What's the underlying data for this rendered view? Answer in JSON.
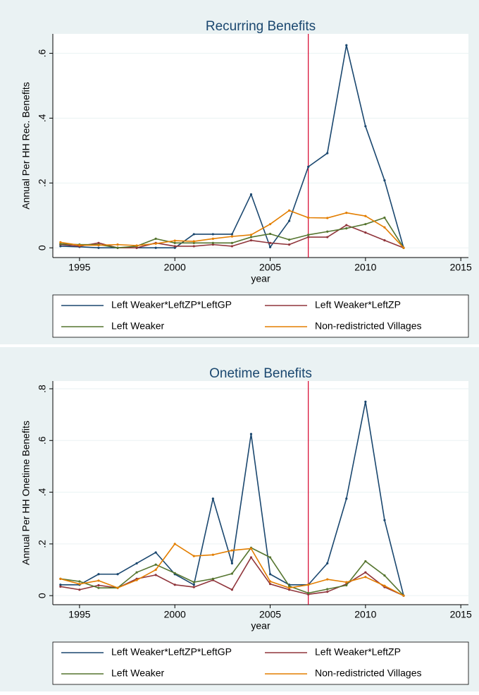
{
  "chart_data": [
    {
      "type": "line",
      "title": "Recurring Benefits",
      "x_label": "year",
      "y_label": "Annual Per HH Rec. Benefits",
      "x": [
        1994,
        1995,
        1996,
        1997,
        1998,
        1999,
        2000,
        2001,
        2002,
        2003,
        2004,
        2005,
        2006,
        2007,
        2008,
        2009,
        2010,
        2011,
        2012
      ],
      "series": [
        {
          "name": "Left Weaker*LeftZP*LeftGP",
          "color": "#1a476f",
          "values": [
            0.005,
            0.003,
            0,
            0,
            0,
            0,
            0,
            0.042,
            0.042,
            0.042,
            0.165,
            0.002,
            0.083,
            0.25,
            0.292,
            0.625,
            0.375,
            0.208,
            0
          ]
        },
        {
          "name": "Left Weaker*LeftZP",
          "color": "#90353b",
          "values": [
            0.01,
            0.005,
            0.015,
            0,
            0,
            0.015,
            0.005,
            0.005,
            0.01,
            0.005,
            0.023,
            0.015,
            0.01,
            0.033,
            0.033,
            0.07,
            0.047,
            0.023,
            0
          ]
        },
        {
          "name": "Left Weaker",
          "color": "#55752f",
          "values": [
            0.012,
            0.01,
            0.01,
            0,
            0.005,
            0.028,
            0.015,
            0.015,
            0.015,
            0.015,
            0.033,
            0.043,
            0.025,
            0.04,
            0.05,
            0.06,
            0.073,
            0.093,
            0
          ]
        },
        {
          "name": "Non-redistricted Villages",
          "color": "#e37e00",
          "values": [
            0.017,
            0.008,
            0.008,
            0.01,
            0.007,
            0.013,
            0.022,
            0.02,
            0.028,
            0.035,
            0.04,
            0.073,
            0.115,
            0.093,
            0.092,
            0.108,
            0.098,
            0.063,
            0
          ]
        }
      ],
      "xlim": [
        1993.6,
        2015.4
      ],
      "xticks": [
        1995,
        2000,
        2005,
        2010,
        2015
      ],
      "ylim": [
        -0.03,
        0.66
      ],
      "yticks": [
        0,
        {
          "value": 0.2,
          "label": ".2"
        },
        {
          "value": 0.4,
          "label": ".4"
        },
        {
          "value": 0.6,
          "label": ".6"
        }
      ],
      "grid": true,
      "xline": 2007,
      "xline_color": "#d6002a",
      "legend": {
        "position": "bottom",
        "columns": 2
      }
    },
    {
      "type": "line",
      "title": "Onetime Benefits",
      "x_label": "year",
      "y_label": "Annual Per HH Onetime Benefits",
      "x": [
        1994,
        1995,
        1996,
        1997,
        1998,
        1999,
        2000,
        2001,
        2002,
        2003,
        2004,
        2005,
        2006,
        2007,
        2008,
        2009,
        2010,
        2011,
        2012
      ],
      "series": [
        {
          "name": "Left Weaker*LeftZP*LeftGP",
          "color": "#1a476f",
          "values": [
            0.042,
            0.042,
            0.083,
            0.083,
            0.125,
            0.167,
            0.083,
            0.042,
            0.375,
            0.125,
            0.625,
            0.083,
            0.042,
            0.042,
            0.125,
            0.375,
            0.75,
            0.292,
            0
          ]
        },
        {
          "name": "Left Weaker*LeftZP",
          "color": "#90353b",
          "values": [
            0.035,
            0.023,
            0.04,
            0.03,
            0.065,
            0.08,
            0.042,
            0.033,
            0.06,
            0.023,
            0.148,
            0.045,
            0.023,
            0.005,
            0.015,
            0.045,
            0.09,
            0.033,
            0
          ]
        },
        {
          "name": "Left Weaker",
          "color": "#55752f",
          "values": [
            0.065,
            0.055,
            0.03,
            0.03,
            0.09,
            0.12,
            0.087,
            0.052,
            0.065,
            0.085,
            0.185,
            0.148,
            0.037,
            0.01,
            0.025,
            0.04,
            0.133,
            0.078,
            0
          ]
        },
        {
          "name": "Non-redistricted Villages",
          "color": "#e37e00",
          "values": [
            0.065,
            0.045,
            0.058,
            0.03,
            0.06,
            0.1,
            0.2,
            0.153,
            0.158,
            0.175,
            0.182,
            0.055,
            0.03,
            0.042,
            0.063,
            0.052,
            0.072,
            0.038,
            0
          ]
        }
      ],
      "xlim": [
        1993.6,
        2015.4
      ],
      "xticks": [
        1995,
        2000,
        2005,
        2010,
        2015
      ],
      "ylim": [
        -0.035,
        0.83
      ],
      "yticks": [
        0,
        {
          "value": 0.2,
          "label": ".2"
        },
        {
          "value": 0.4,
          "label": ".4"
        },
        {
          "value": 0.6,
          "label": ".6"
        },
        {
          "value": 0.8,
          "label": ".8"
        }
      ],
      "grid": true,
      "xline": 2007,
      "xline_color": "#d6002a",
      "legend": {
        "position": "bottom",
        "columns": 2
      }
    }
  ]
}
